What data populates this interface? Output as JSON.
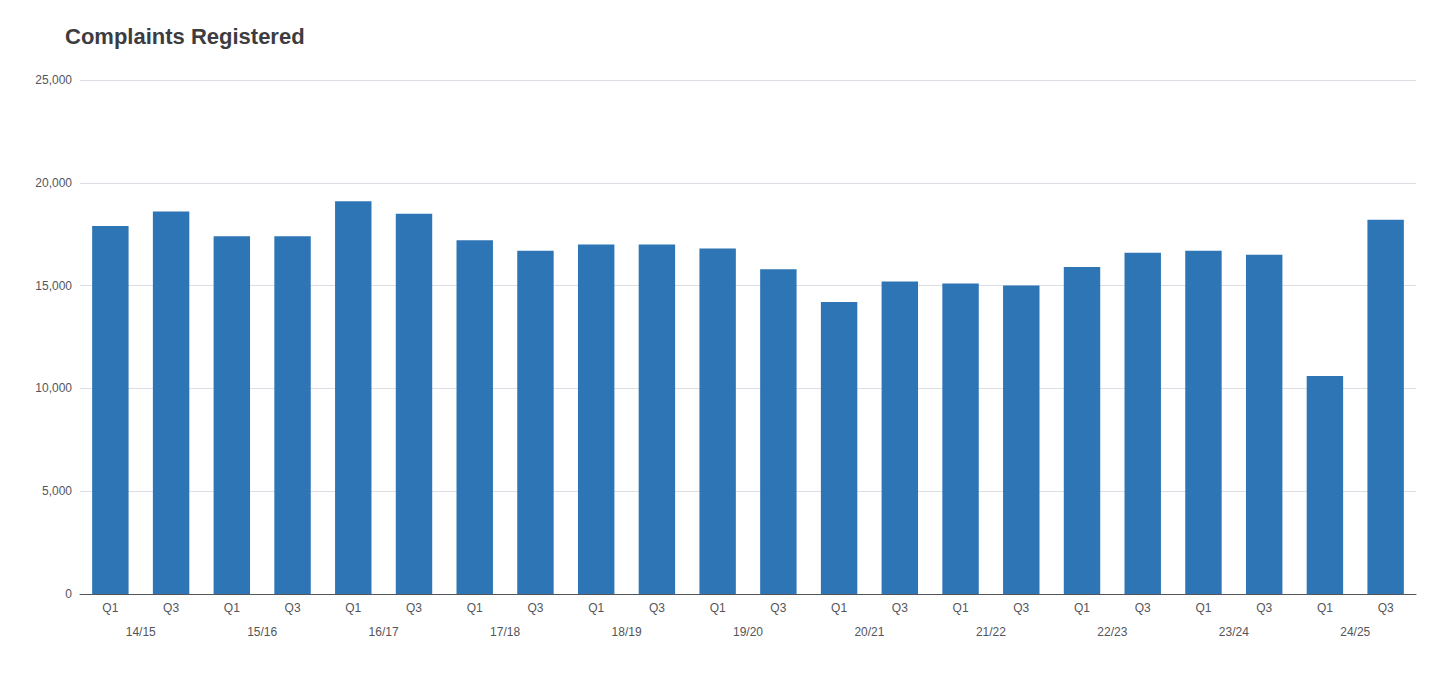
{
  "chart_data": {
    "type": "bar",
    "title": "Complaints Registered",
    "categories": [
      "Q1",
      "Q3",
      "Q1",
      "Q3",
      "Q1",
      "Q3",
      "Q1",
      "Q3",
      "Q1",
      "Q3",
      "Q1",
      "Q3",
      "Q1",
      "Q3",
      "Q1",
      "Q3",
      "Q1",
      "Q3",
      "Q1",
      "Q3",
      "Q1",
      "Q3"
    ],
    "values": [
      17900,
      18600,
      17400,
      17400,
      19100,
      18500,
      17200,
      16700,
      17000,
      17000,
      16800,
      15800,
      14200,
      15200,
      15100,
      15000,
      15900,
      16600,
      16700,
      16500,
      10600,
      18200
    ],
    "annotations": [
      "14/15",
      "15/16",
      "16/17",
      "17/18",
      "18/19",
      "19/20",
      "20/21",
      "21/22",
      "22/23",
      "23/24",
      "24/25"
    ],
    "color": "#2E75B6",
    "ylim": [
      0,
      25000
    ],
    "yticks": [
      0,
      {
        "value": 5000,
        "label": "5,000"
      },
      {
        "value": 10000,
        "label": "10,000"
      },
      {
        "value": 15000,
        "label": "15,000"
      },
      {
        "value": 20000,
        "label": "20,000"
      },
      {
        "value": 25000,
        "label": "25,000"
      }
    ],
    "grid": true
  }
}
